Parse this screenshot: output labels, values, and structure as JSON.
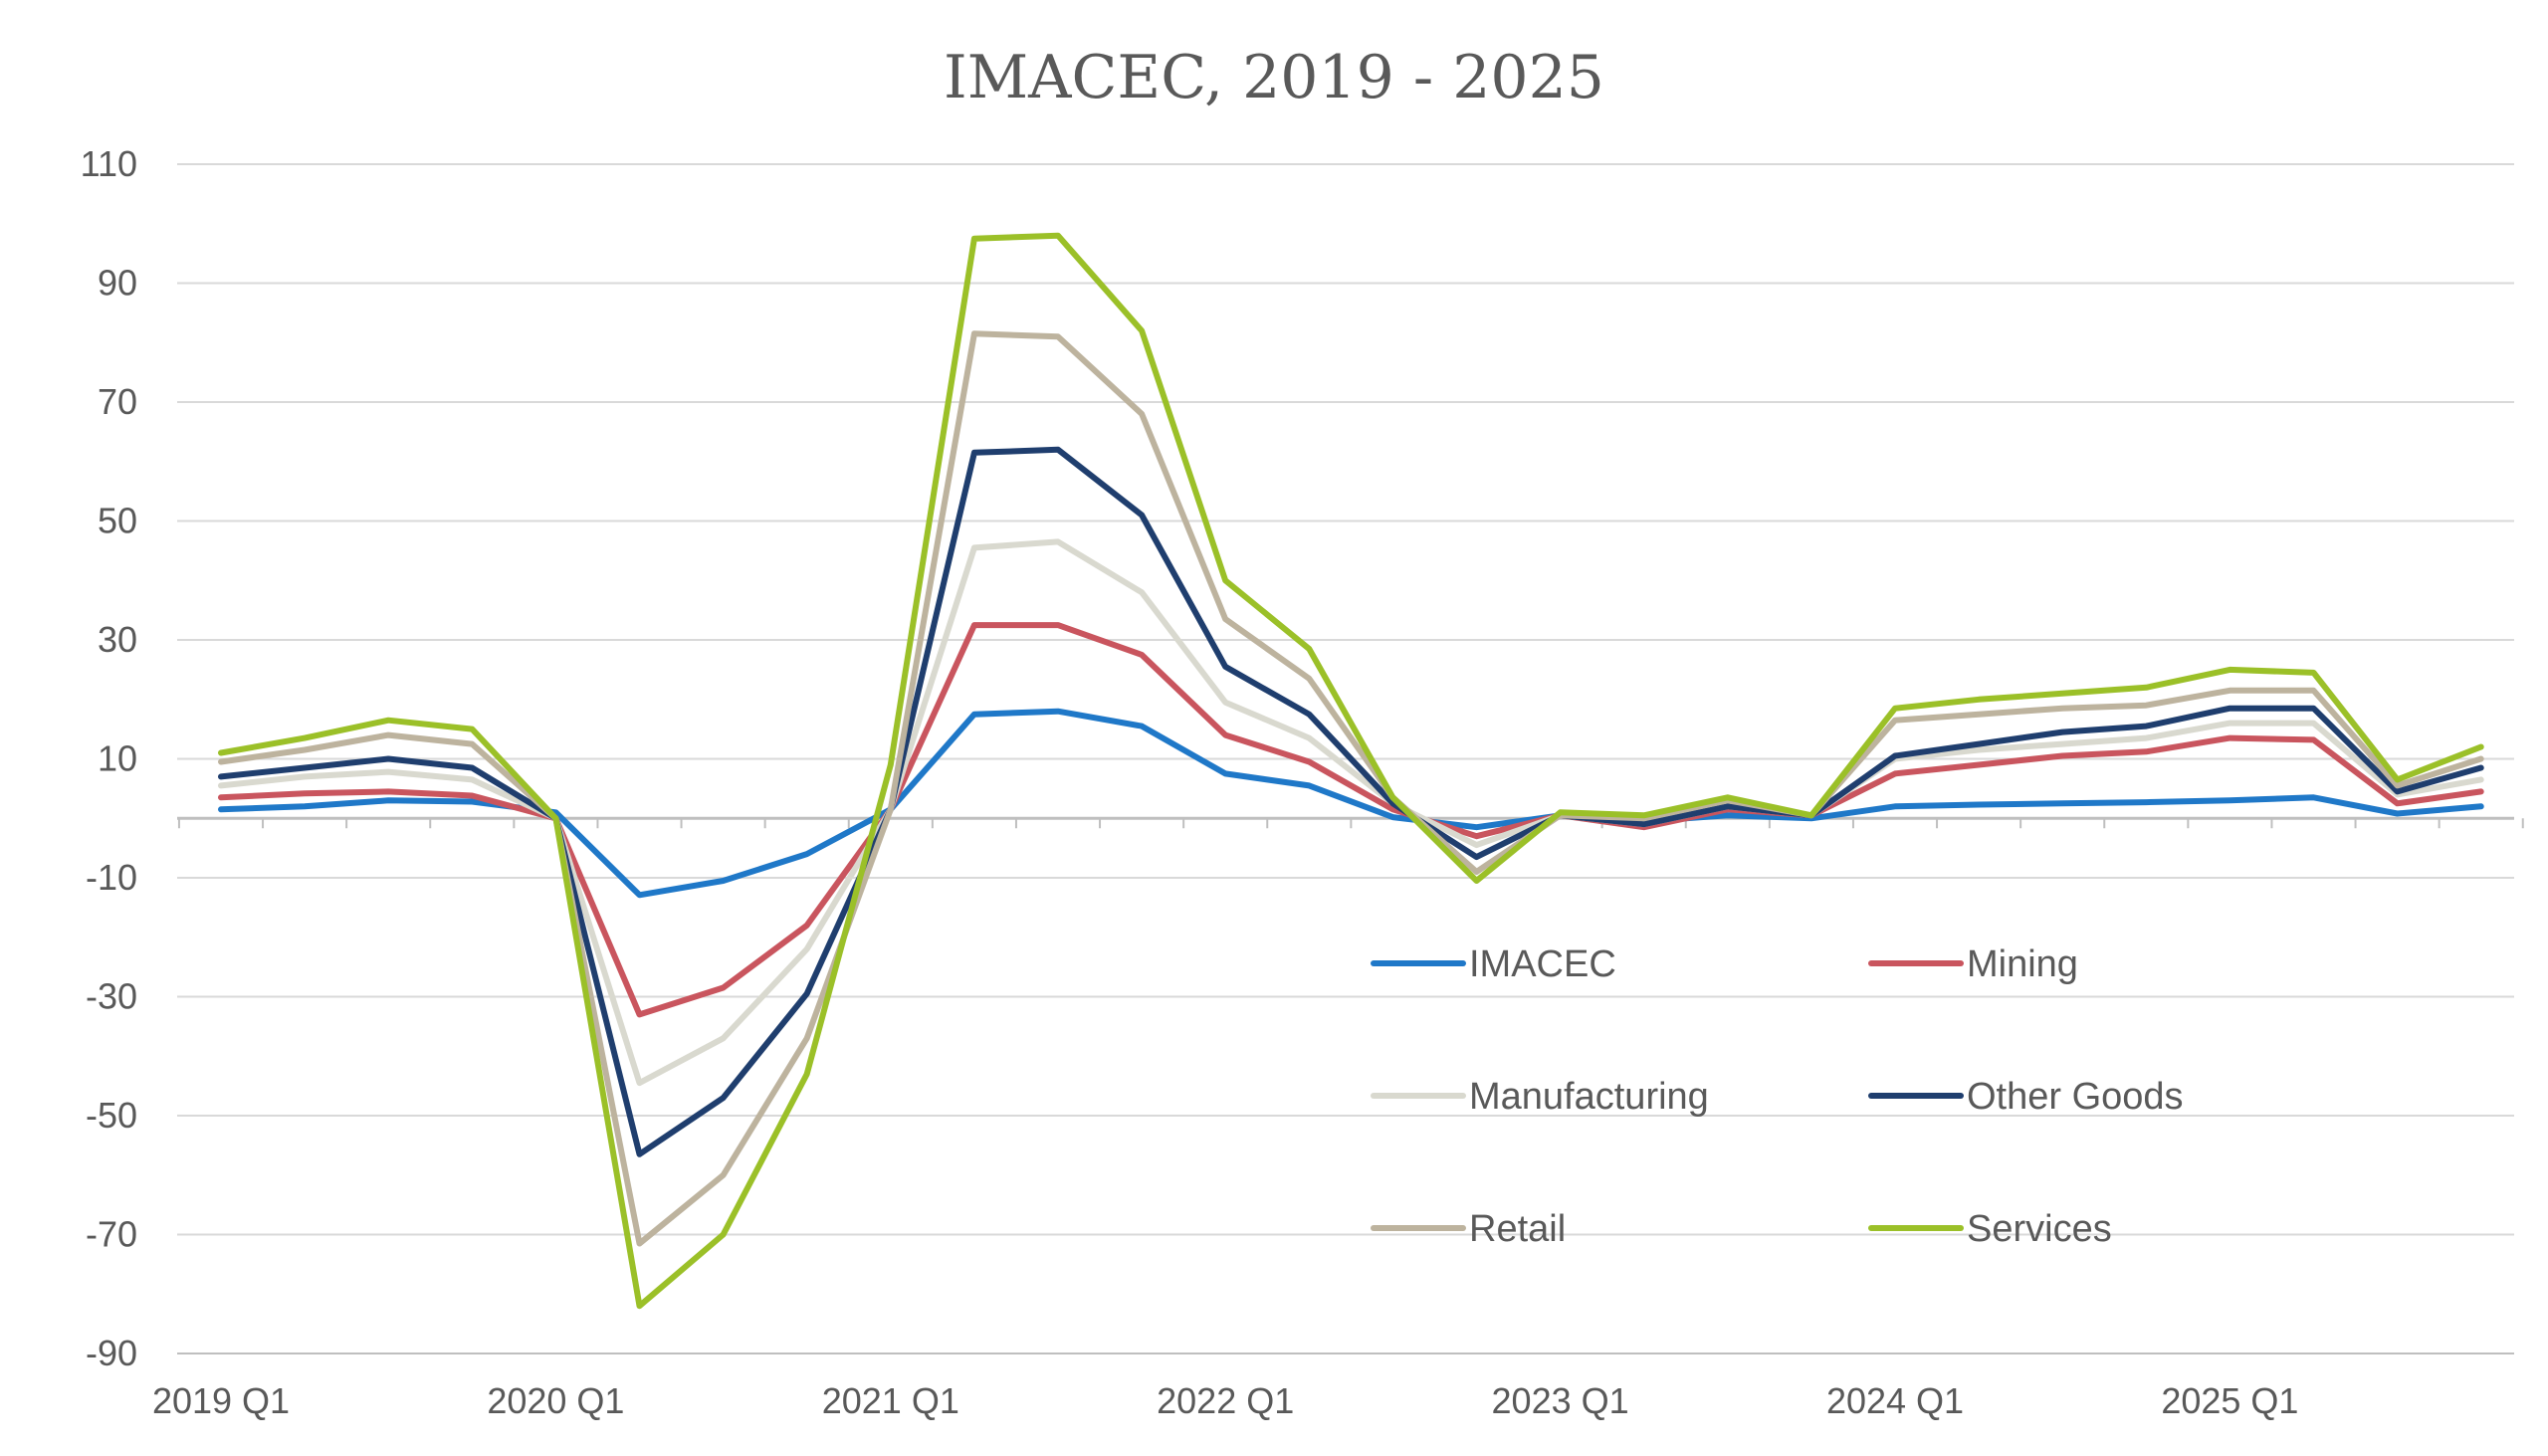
{
  "chart_data": {
    "type": "line",
    "title": "IMACEC, 2019 - 2025",
    "xlabel": "",
    "ylabel": "",
    "ylim": [
      -90,
      110
    ],
    "yticks": [
      -90,
      -70,
      -50,
      -30,
      -10,
      10,
      30,
      50,
      70,
      90,
      110
    ],
    "ytick_labels": [
      "-90",
      "-70",
      "-50",
      "-30",
      "-10",
      "10",
      "30",
      "50",
      "70",
      "90",
      "110"
    ],
    "grid": true,
    "legend_position": "bottom-right",
    "x_tick_labels": [
      {
        "label": "2019 Q1",
        "index": 0
      },
      {
        "label": "2020 Q1",
        "index": 4
      },
      {
        "label": "2021 Q1",
        "index": 8
      },
      {
        "label": "2022 Q1",
        "index": 12
      },
      {
        "label": "2023 Q1",
        "index": 16
      },
      {
        "label": "2024 Q1",
        "index": 20
      },
      {
        "label": "2025 Q1",
        "index": 24
      }
    ],
    "x": [
      "2019 Q1",
      "2019 Q2",
      "2019 Q3",
      "2019 Q4",
      "2020 Q1",
      "2020 Q2",
      "2020 Q3",
      "2020 Q4",
      "2021 Q1",
      "2021 Q2",
      "2021 Q3",
      "2021 Q4",
      "2022 Q1",
      "2022 Q2",
      "2022 Q3",
      "2022 Q4",
      "2023 Q1",
      "2023 Q2",
      "2023 Q3",
      "2023 Q4",
      "2024 Q1",
      "2024 Q2",
      "2024 Q3",
      "2024 Q4",
      "2025 Q1",
      "2025 Q2",
      "2025 Q3",
      "2025 Q4"
    ],
    "series": [
      {
        "name": "IMACEC",
        "color": "#1F78C8",
        "values": [
          1.5,
          2.0,
          3.0,
          2.8,
          1.0,
          -12.9,
          -10.5,
          -6.0,
          1.5,
          17.5,
          18.0,
          15.5,
          7.5,
          5.5,
          0.2,
          -1.5,
          0.5,
          -0.5,
          0.5,
          0.0,
          2.0,
          2.3,
          2.5,
          2.7,
          3.0,
          3.5,
          0.8,
          2.0
        ]
      },
      {
        "name": "Mining",
        "color": "#C9555E",
        "values": [
          3.5,
          4.2,
          4.5,
          3.8,
          0.0,
          -33.0,
          -28.5,
          -18.0,
          1.5,
          32.5,
          32.5,
          27.5,
          14.0,
          9.5,
          1.5,
          -3.0,
          0.5,
          -1.5,
          1.5,
          0.5,
          7.5,
          9.0,
          10.5,
          11.2,
          13.5,
          13.2,
          2.5,
          4.5
        ]
      },
      {
        "name": "Manufacturing",
        "color": "#D9D9CF",
        "values": [
          5.5,
          7.0,
          7.8,
          6.5,
          0.0,
          -44.5,
          -37.0,
          -22.0,
          1.5,
          45.5,
          46.5,
          38.0,
          19.5,
          13.5,
          2.5,
          -4.5,
          0.5,
          -1.0,
          2.0,
          0.5,
          10.0,
          11.5,
          12.5,
          13.5,
          16.0,
          16.0,
          4.0,
          6.5
        ]
      },
      {
        "name": "Other Goods",
        "color": "#1F3E6E",
        "values": [
          7.0,
          8.5,
          10.0,
          8.5,
          0.0,
          -56.5,
          -47.0,
          -29.5,
          1.5,
          61.5,
          62.0,
          51.0,
          25.5,
          17.5,
          2.5,
          -6.5,
          0.5,
          -1.0,
          2.0,
          0.5,
          10.5,
          12.5,
          14.5,
          15.5,
          18.5,
          18.5,
          4.5,
          8.5
        ]
      },
      {
        "name": "Retail",
        "color": "#BDB39E",
        "values": [
          9.5,
          11.5,
          14.0,
          12.5,
          0.0,
          -71.5,
          -60.0,
          -37.0,
          1.5,
          81.5,
          81.0,
          68.0,
          33.5,
          23.5,
          3.5,
          -9.0,
          0.5,
          0.0,
          3.0,
          0.5,
          16.5,
          17.5,
          18.5,
          19.0,
          21.5,
          21.5,
          5.5,
          10.0
        ]
      },
      {
        "name": "Services",
        "color": "#9BC028",
        "values": [
          11.0,
          13.5,
          16.5,
          15.0,
          0.0,
          -82.0,
          -70.0,
          -43.0,
          9.0,
          97.5,
          98.0,
          82.0,
          40.0,
          28.5,
          3.5,
          -10.5,
          1.0,
          0.5,
          3.5,
          0.5,
          18.5,
          20.0,
          21.0,
          22.0,
          25.0,
          24.5,
          6.5,
          12.0
        ]
      }
    ]
  }
}
